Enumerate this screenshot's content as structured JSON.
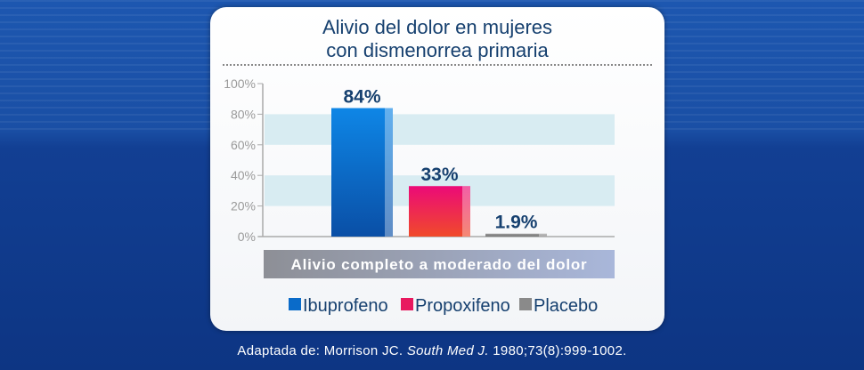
{
  "chart_data": {
    "type": "bar",
    "title": "Alivio del dolor en mujeres con dismenorrea primaria",
    "title_lines": [
      "Alivio del dolor en mujeres",
      "con dismenorrea primaria"
    ],
    "categories": [
      "Ibuprofeno",
      "Propoxifeno",
      "Placebo"
    ],
    "values": [
      84,
      33,
      1.9
    ],
    "data_labels": [
      "84%",
      "33%",
      "1.9%"
    ],
    "colors": [
      "#0a6bc9",
      "#e8195f",
      "#8a8a8a"
    ],
    "yticks": [
      "0%",
      "20%",
      "40%",
      "60%",
      "80%",
      "100%"
    ],
    "ylim": [
      0,
      100
    ],
    "xlabel": "Alivio completo a moderado del dolor",
    "legend": [
      "Ibuprofeno",
      "Propoxifeno",
      "Placebo"
    ],
    "legend_placement": "bottom"
  },
  "citation": {
    "prefix": "Adaptada de: Morrison JC. ",
    "journal": "South Med J.",
    "suffix": " 1980;73(8):999-1002."
  }
}
